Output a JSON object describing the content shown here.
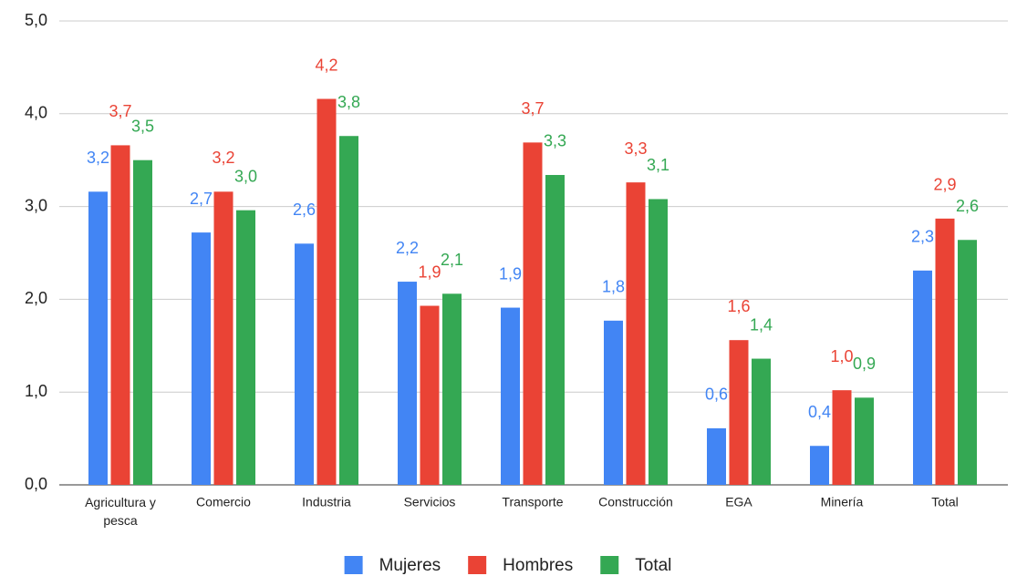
{
  "chart_data": {
    "type": "bar",
    "categories": [
      "Agricultura y pesca",
      "Comercio",
      "Industria",
      "Servicios",
      "Transporte",
      "Construcción",
      "EGA",
      "Minería",
      "Total"
    ],
    "series": [
      {
        "name": "Mujeres",
        "color": "#4285f4",
        "values": [
          3.16,
          2.72,
          2.6,
          2.19,
          1.91,
          1.77,
          0.61,
          0.42,
          2.31
        ],
        "value_labels": [
          "3,2",
          "2,7",
          "2,6",
          "2,2",
          "1,9",
          "1,8",
          "0,6",
          "0,4",
          "2,3"
        ]
      },
      {
        "name": "Hombres",
        "color": "#ea4335",
        "values": [
          3.66,
          3.16,
          4.16,
          1.93,
          3.69,
          3.26,
          1.56,
          1.02,
          2.87
        ],
        "value_labels": [
          "3,7",
          "3,2",
          "4,2",
          "1,9",
          "3,7",
          "3,3",
          "1,6",
          "1,0",
          "2,9"
        ]
      },
      {
        "name": "Total",
        "color": "#34a853",
        "values": [
          3.5,
          2.96,
          3.76,
          2.06,
          3.34,
          3.08,
          1.36,
          0.94,
          2.64
        ],
        "value_labels": [
          "3,5",
          "3,0",
          "3,8",
          "2,1",
          "3,3",
          "3,1",
          "1,4",
          "0,9",
          "2,6"
        ]
      }
    ],
    "ylim": [
      0,
      5
    ],
    "yticks": [
      {
        "value": 0,
        "label": "0,0"
      },
      {
        "value": 1,
        "label": "1,0"
      },
      {
        "value": 2,
        "label": "2,0"
      },
      {
        "value": 3,
        "label": "3,0"
      },
      {
        "value": 4,
        "label": "4,0"
      },
      {
        "value": 5,
        "label": "5,0"
      }
    ],
    "grid": true,
    "legend": "bottom"
  }
}
